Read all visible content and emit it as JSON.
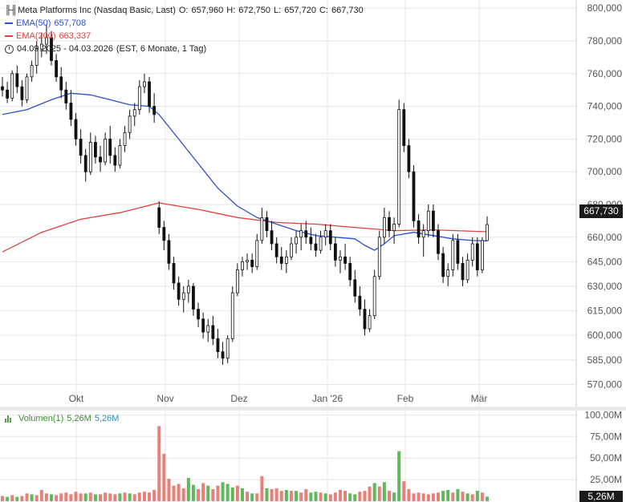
{
  "legend": {
    "title": "Meta Platforms Inc (Nasdaq Basic, Last)",
    "open_label": "O:",
    "open": "657,960",
    "high_label": "H:",
    "high": "672,750",
    "low_label": "L:",
    "low": "657,720",
    "close_label": "C:",
    "close": "667,730",
    "ema50_label": "EMA(50)",
    "ema50_value": "657,708",
    "ema200_label": "EMA(200)",
    "ema200_value": "663,337",
    "range": "04.09.2025 - 04.03.2026",
    "range_info": "(EST, 6 Monate, 1 Tag)"
  },
  "volume_legend": {
    "label": "Volumen(1)",
    "value1": "5,26M",
    "value2": "5,26M"
  },
  "last_price_badge": "667,730",
  "last_volume_badge": "5,26M",
  "colors": {
    "ema50": "#2a4fd6",
    "ema200": "#e2413b",
    "candle": "#111111",
    "vol_up": "#5fb85a",
    "vol_down": "#e8807a",
    "grid": "#e6e6e6"
  },
  "chart_data": {
    "type": "candlestick",
    "title": "Meta Platforms Inc (Nasdaq Basic, Last)",
    "x_tick_labels": [
      "Okt",
      "Nov",
      "Dez",
      "Jan '26",
      "Feb",
      "Mär"
    ],
    "y_tick_labels": [
      "800,000",
      "780,000",
      "760,000",
      "740,000",
      "720,000",
      "700,000",
      "680,000",
      "660,000",
      "645,000",
      "630,000",
      "615,000",
      "600,000",
      "585,000",
      "570,000"
    ],
    "y_ticks": [
      800,
      780,
      760,
      740,
      720,
      700,
      680,
      660,
      645,
      630,
      615,
      600,
      585,
      570
    ],
    "ylim": [
      555,
      805
    ],
    "volume_tick_labels": [
      "100,00M",
      "75,00M",
      "50,00M",
      "25,00M"
    ],
    "volume_ticks": [
      100,
      75,
      50,
      25
    ],
    "volume_ylim": [
      0,
      105
    ],
    "grid": true,
    "candles": [
      [
        752,
        758,
        746,
        750
      ],
      [
        750,
        755,
        742,
        745
      ],
      [
        745,
        762,
        743,
        760
      ],
      [
        760,
        765,
        748,
        752
      ],
      [
        752,
        756,
        740,
        744
      ],
      [
        744,
        760,
        742,
        758
      ],
      [
        758,
        768,
        755,
        765
      ],
      [
        765,
        780,
        760,
        775
      ],
      [
        775,
        785,
        770,
        778
      ],
      [
        778,
        790,
        772,
        782
      ],
      [
        782,
        786,
        765,
        768
      ],
      [
        768,
        772,
        755,
        758
      ],
      [
        758,
        764,
        745,
        750
      ],
      [
        750,
        755,
        738,
        742
      ],
      [
        742,
        750,
        728,
        732
      ],
      [
        732,
        736,
        716,
        720
      ],
      [
        720,
        726,
        705,
        710
      ],
      [
        710,
        714,
        694,
        700
      ],
      [
        700,
        724,
        698,
        718
      ],
      [
        718,
        722,
        705,
        709
      ],
      [
        709,
        716,
        700,
        706
      ],
      [
        706,
        724,
        704,
        720
      ],
      [
        720,
        728,
        705,
        710
      ],
      [
        710,
        715,
        700,
        704
      ],
      [
        704,
        720,
        702,
        716
      ],
      [
        716,
        728,
        712,
        724
      ],
      [
        724,
        738,
        720,
        734
      ],
      [
        734,
        742,
        728,
        738
      ],
      [
        738,
        756,
        735,
        752
      ],
      [
        752,
        760,
        748,
        755
      ],
      [
        755,
        758,
        736,
        740
      ],
      [
        740,
        748,
        730,
        735
      ],
      [
        678,
        682,
        662,
        666
      ],
      [
        666,
        670,
        652,
        658
      ],
      [
        658,
        662,
        640,
        644
      ],
      [
        644,
        648,
        628,
        632
      ],
      [
        632,
        636,
        618,
        622
      ],
      [
        622,
        630,
        614,
        626
      ],
      [
        626,
        634,
        620,
        630
      ],
      [
        630,
        632,
        612,
        616
      ],
      [
        616,
        620,
        605,
        610
      ],
      [
        610,
        614,
        598,
        602
      ],
      [
        602,
        610,
        596,
        606
      ],
      [
        606,
        612,
        594,
        598
      ],
      [
        598,
        604,
        586,
        590
      ],
      [
        590,
        596,
        582,
        586
      ],
      [
        586,
        600,
        583,
        598
      ],
      [
        598,
        630,
        596,
        626
      ],
      [
        626,
        644,
        624,
        640
      ],
      [
        640,
        648,
        636,
        645
      ],
      [
        645,
        650,
        640,
        646
      ],
      [
        646,
        650,
        638,
        642
      ],
      [
        642,
        662,
        640,
        658
      ],
      [
        658,
        678,
        656,
        672
      ],
      [
        672,
        676,
        660,
        664
      ],
      [
        664,
        670,
        652,
        656
      ],
      [
        656,
        660,
        644,
        648
      ],
      [
        648,
        654,
        640,
        644
      ],
      [
        644,
        652,
        638,
        648
      ],
      [
        648,
        660,
        646,
        656
      ],
      [
        656,
        664,
        650,
        660
      ],
      [
        660,
        668,
        652,
        664
      ],
      [
        664,
        670,
        656,
        660
      ],
      [
        660,
        666,
        652,
        656
      ],
      [
        656,
        662,
        648,
        652
      ],
      [
        652,
        664,
        650,
        660
      ],
      [
        660,
        668,
        655,
        664
      ],
      [
        664,
        668,
        652,
        656
      ],
      [
        656,
        660,
        642,
        646
      ],
      [
        646,
        652,
        638,
        648
      ],
      [
        648,
        656,
        640,
        644
      ],
      [
        644,
        648,
        630,
        634
      ],
      [
        634,
        640,
        620,
        624
      ],
      [
        624,
        630,
        612,
        616
      ],
      [
        616,
        622,
        600,
        604
      ],
      [
        604,
        616,
        602,
        612
      ],
      [
        612,
        640,
        610,
        636
      ],
      [
        636,
        664,
        634,
        660
      ],
      [
        660,
        678,
        656,
        672
      ],
      [
        672,
        676,
        660,
        664
      ],
      [
        664,
        672,
        656,
        668
      ],
      [
        668,
        744,
        666,
        738
      ],
      [
        738,
        742,
        712,
        716
      ],
      [
        716,
        720,
        696,
        700
      ],
      [
        700,
        704,
        666,
        670
      ],
      [
        670,
        674,
        656,
        660
      ],
      [
        660,
        668,
        648,
        664
      ],
      [
        664,
        680,
        660,
        676
      ],
      [
        676,
        680,
        660,
        664
      ],
      [
        664,
        668,
        646,
        650
      ],
      [
        650,
        654,
        632,
        636
      ],
      [
        636,
        644,
        630,
        640
      ],
      [
        640,
        662,
        636,
        658
      ],
      [
        658,
        662,
        640,
        644
      ],
      [
        644,
        648,
        630,
        634
      ],
      [
        634,
        650,
        632,
        646
      ],
      [
        646,
        660,
        642,
        656
      ],
      [
        656,
        660,
        636,
        640
      ],
      [
        640,
        660,
        638,
        658
      ],
      [
        657.96,
        672.75,
        657.72,
        667.73
      ]
    ],
    "ema50": [
      [
        0,
        735
      ],
      [
        5,
        738
      ],
      [
        10,
        744
      ],
      [
        14,
        748
      ],
      [
        18,
        747
      ],
      [
        22,
        744
      ],
      [
        26,
        741
      ],
      [
        30,
        740
      ],
      [
        32,
        735
      ],
      [
        36,
        720
      ],
      [
        40,
        705
      ],
      [
        44,
        690
      ],
      [
        48,
        679
      ],
      [
        52,
        672
      ],
      [
        56,
        668
      ],
      [
        60,
        664
      ],
      [
        64,
        661
      ],
      [
        68,
        660
      ],
      [
        72,
        659
      ],
      [
        74,
        655
      ],
      [
        76,
        652
      ],
      [
        78,
        656
      ],
      [
        80,
        661
      ],
      [
        84,
        663
      ],
      [
        88,
        661
      ],
      [
        92,
        659
      ],
      [
        96,
        658
      ],
      [
        99,
        657.708
      ]
    ],
    "ema200": [
      [
        0,
        651
      ],
      [
        8,
        663
      ],
      [
        16,
        671
      ],
      [
        24,
        675
      ],
      [
        32,
        681
      ],
      [
        40,
        677
      ],
      [
        48,
        672
      ],
      [
        56,
        669
      ],
      [
        64,
        668
      ],
      [
        72,
        666
      ],
      [
        80,
        664
      ],
      [
        88,
        664.5
      ],
      [
        99,
        663.337
      ]
    ],
    "volume": [
      [
        6,
        1
      ],
      [
        5,
        0
      ],
      [
        7,
        1
      ],
      [
        5,
        0
      ],
      [
        6,
        1
      ],
      [
        9,
        1
      ],
      [
        8,
        0
      ],
      [
        7,
        1
      ],
      [
        13,
        1
      ],
      [
        9,
        1
      ],
      [
        8,
        0
      ],
      [
        7,
        1
      ],
      [
        9,
        1
      ],
      [
        10,
        1
      ],
      [
        8,
        1
      ],
      [
        11,
        1
      ],
      [
        9,
        1
      ],
      [
        9,
        0
      ],
      [
        10,
        1
      ],
      [
        8,
        0
      ],
      [
        8,
        1
      ],
      [
        10,
        1
      ],
      [
        9,
        1
      ],
      [
        8,
        1
      ],
      [
        9,
        0
      ],
      [
        10,
        1
      ],
      [
        9,
        0
      ],
      [
        8,
        1
      ],
      [
        10,
        1
      ],
      [
        11,
        1
      ],
      [
        10,
        1
      ],
      [
        13,
        1
      ],
      [
        87,
        1
      ],
      [
        55,
        1
      ],
      [
        26,
        1
      ],
      [
        18,
        1
      ],
      [
        20,
        1
      ],
      [
        15,
        1
      ],
      [
        27,
        0
      ],
      [
        19,
        0
      ],
      [
        14,
        1
      ],
      [
        21,
        1
      ],
      [
        18,
        0
      ],
      [
        14,
        1
      ],
      [
        18,
        1
      ],
      [
        22,
        0
      ],
      [
        20,
        0
      ],
      [
        16,
        0
      ],
      [
        18,
        1
      ],
      [
        15,
        0
      ],
      [
        11,
        1
      ],
      [
        9,
        0
      ],
      [
        9,
        1
      ],
      [
        29,
        1
      ],
      [
        15,
        0
      ],
      [
        14,
        1
      ],
      [
        15,
        1
      ],
      [
        12,
        1
      ],
      [
        13,
        0
      ],
      [
        12,
        1
      ],
      [
        12,
        0
      ],
      [
        10,
        1
      ],
      [
        14,
        1
      ],
      [
        10,
        0
      ],
      [
        11,
        0
      ],
      [
        10,
        1
      ],
      [
        9,
        0
      ],
      [
        8,
        1
      ],
      [
        10,
        1
      ],
      [
        13,
        1
      ],
      [
        12,
        1
      ],
      [
        9,
        0
      ],
      [
        8,
        0
      ],
      [
        11,
        1
      ],
      [
        12,
        1
      ],
      [
        17,
        1
      ],
      [
        21,
        0
      ],
      [
        17,
        1
      ],
      [
        22,
        0
      ],
      [
        12,
        1
      ],
      [
        10,
        0
      ],
      [
        58,
        0
      ],
      [
        23,
        1
      ],
      [
        14,
        1
      ],
      [
        9,
        1
      ],
      [
        10,
        1
      ],
      [
        9,
        1
      ],
      [
        8,
        1
      ],
      [
        9,
        1
      ],
      [
        10,
        1
      ],
      [
        12,
        0
      ],
      [
        13,
        0
      ],
      [
        10,
        1
      ],
      [
        14,
        0
      ],
      [
        11,
        1
      ],
      [
        9,
        0
      ],
      [
        8,
        1
      ],
      [
        12,
        0
      ],
      [
        10,
        1
      ],
      [
        5.26,
        0
      ]
    ]
  }
}
